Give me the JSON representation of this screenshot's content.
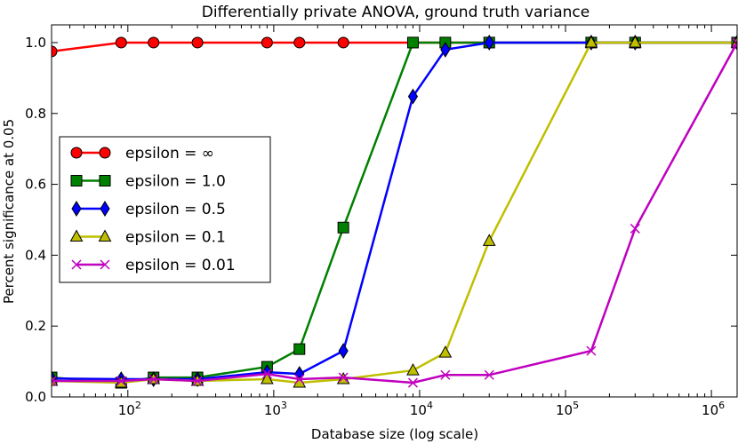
{
  "chart_data": {
    "type": "line",
    "title": "Differentially private ANOVA, ground truth variance",
    "xlabel": "Database size (log scale)",
    "ylabel": "Percent significance at 0.05",
    "x_scale": "log",
    "xlim": [
      30,
      1500000
    ],
    "ylim": [
      0.0,
      1.05
    ],
    "x_ticks": [
      {
        "value": 100,
        "base": "10",
        "exp": "2"
      },
      {
        "value": 1000,
        "base": "10",
        "exp": "3"
      },
      {
        "value": 10000,
        "base": "10",
        "exp": "4"
      },
      {
        "value": 100000,
        "base": "10",
        "exp": "5"
      },
      {
        "value": 1000000,
        "base": "10",
        "exp": "6"
      }
    ],
    "y_ticks": [
      {
        "value": 0.0,
        "label": "0.0"
      },
      {
        "value": 0.2,
        "label": "0.2"
      },
      {
        "value": 0.4,
        "label": "0.4"
      },
      {
        "value": 0.6,
        "label": "0.6"
      },
      {
        "value": 0.8,
        "label": "0.8"
      },
      {
        "value": 1.0,
        "label": "1.0"
      }
    ],
    "grid": false,
    "legend_position": "center-left",
    "series": [
      {
        "name": "epsilon = ∞",
        "color": "#ff0000",
        "marker": "circle",
        "x": [
          30,
          90,
          150,
          300,
          900,
          1500,
          3000,
          9000,
          15000,
          30000,
          150000,
          300000,
          1500000
        ],
        "y": [
          0.975,
          1.0,
          1.0,
          1.0,
          1.0,
          1.0,
          1.0,
          1.0,
          1.0,
          1.0,
          1.0,
          1.0,
          1.0
        ]
      },
      {
        "name": "epsilon = 1.0",
        "color": "#008000",
        "marker": "square",
        "x": [
          30,
          90,
          150,
          300,
          900,
          1500,
          3000,
          9000,
          15000,
          30000,
          150000,
          300000,
          1500000
        ],
        "y": [
          0.055,
          0.04,
          0.055,
          0.055,
          0.085,
          0.135,
          0.478,
          1.0,
          1.0,
          1.0,
          1.0,
          1.0,
          1.0
        ]
      },
      {
        "name": "epsilon = 0.5",
        "color": "#0000ff",
        "marker": "diamond",
        "x": [
          30,
          90,
          150,
          300,
          900,
          1500,
          3000,
          9000,
          15000,
          30000,
          150000,
          300000,
          1500000
        ],
        "y": [
          0.052,
          0.05,
          0.05,
          0.05,
          0.07,
          0.065,
          0.13,
          0.848,
          0.98,
          1.0,
          1.0,
          1.0,
          1.0
        ]
      },
      {
        "name": "epsilon = 0.1",
        "color": "#bfbf00",
        "marker": "triangle",
        "x": [
          30,
          90,
          150,
          300,
          900,
          1500,
          3000,
          9000,
          15000,
          30000,
          150000,
          300000,
          1500000
        ],
        "y": [
          0.045,
          0.04,
          0.05,
          0.045,
          0.05,
          0.04,
          0.05,
          0.075,
          0.125,
          0.44,
          1.0,
          1.0,
          1.0
        ]
      },
      {
        "name": "epsilon = 0.01",
        "color": "#bf00bf",
        "marker": "x",
        "x": [
          30,
          90,
          150,
          300,
          900,
          1500,
          3000,
          9000,
          15000,
          30000,
          150000,
          300000,
          1500000
        ],
        "y": [
          0.045,
          0.045,
          0.05,
          0.045,
          0.065,
          0.05,
          0.055,
          0.04,
          0.062,
          0.062,
          0.13,
          0.475,
          1.0
        ]
      }
    ]
  }
}
